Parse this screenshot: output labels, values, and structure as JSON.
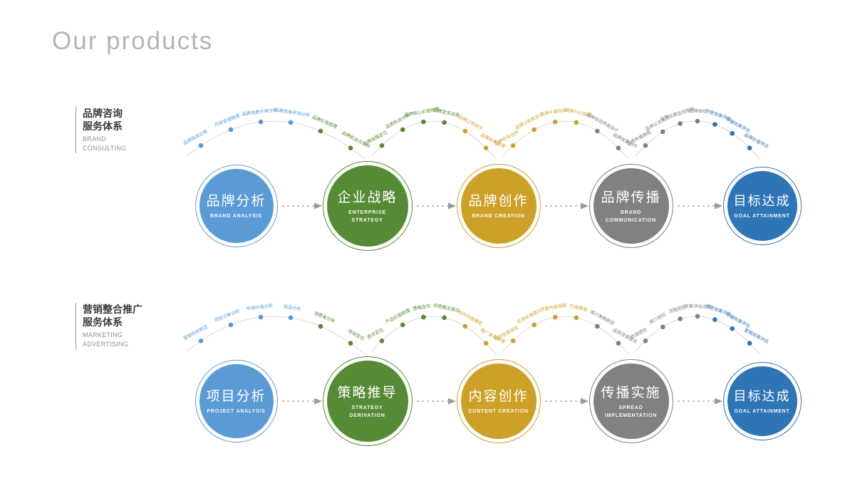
{
  "title": "Our products",
  "colors": {
    "blue": "#5b9bd5",
    "green": "#568a35",
    "gold": "#cda127",
    "gray": "#818181",
    "deepblue": "#2e75b6",
    "arrow": "#9b9b9b",
    "arc": "#cccccc"
  },
  "sections": [
    {
      "id": "brand-consulting",
      "label_cn_line1": "品牌咨询",
      "label_cn_line2": "服务体系",
      "label_en_line1": "BRAND",
      "label_en_line2": "CONSULTING",
      "nodes": [
        {
          "cn": "品牌分析",
          "en": "BRAND ANALYSIS",
          "color": "blue"
        },
        {
          "cn": "企业战略",
          "en": "ENTERPRISE STRATEGY",
          "color": "green"
        },
        {
          "cn": "品牌创作",
          "en": "BRAND CREATION",
          "color": "gold"
        },
        {
          "cn": "品牌传播",
          "en": "BRAND COMMUNICATION",
          "color": "gray"
        },
        {
          "cn": "目标达成",
          "en": "GOAL ATTAINMENT",
          "color": "deepblue"
        }
      ],
      "arcs": [
        {
          "labels": [
            "品牌现状诊断",
            "内部资源梳理",
            "品牌消费环境分析",
            "品牌竞争环境分析",
            "品牌价值梳理",
            "品牌机会点分析"
          ]
        },
        {
          "labels": [
            "品牌战略定位",
            "品类机会分析",
            "品牌核心价值梳理",
            "品牌定名创意",
            "品牌口号创作",
            "品牌故事梳理"
          ]
        },
        {
          "labels": [
            "品牌符号创作",
            "品牌VI系统设计",
            "品牌千面包装",
            "品牌TVC拍摄",
            "品牌体验终端设计",
            "品牌故事创作"
          ]
        },
        {
          "labels": [
            "品牌传播策略",
            "品牌公关策划",
            "日常运营监测策略",
            "品牌体检",
            "创意效果评估",
            "传播效果评估",
            "品牌价值传达"
          ]
        }
      ]
    },
    {
      "id": "marketing-advertising",
      "label_cn_line1": "营销整合推广",
      "label_cn_line2": "服务体系",
      "label_en_line1": "MARKETING",
      "label_en_line2": "ADVERTISING",
      "nodes": [
        {
          "cn": "项目分析",
          "en": "PROJECT ANALYSIS",
          "color": "blue"
        },
        {
          "cn": "策略推导",
          "en": "STRATEGY DERIVATION",
          "color": "green"
        },
        {
          "cn": "内容创作",
          "en": "CONTENT CREATION",
          "color": "gold"
        },
        {
          "cn": "传播实施",
          "en": "SPREAD IMPLEMENTATION",
          "color": "gray"
        },
        {
          "cn": "目标达成",
          "en": "GOAL ATTAINMENT",
          "color": "deepblue"
        }
      ],
      "arcs": [
        {
          "labels": [
            "营销目标制定",
            "项目诊断分析",
            "市场环境分析",
            "竞品分析",
            "消费者分析",
            "项目定位"
          ]
        },
        {
          "labels": [
            "卖点定位",
            "产品价值梳理",
            "策略定位",
            "创意概念提出",
            "创作风格确定",
            "推广故事梳理"
          ]
        },
        {
          "labels": [
            "规划创意研究",
            "任务标准建立",
            "月度内容规划",
            "巧用渠道",
            "媒介策略制定",
            "品质资源整合"
          ]
        },
        {
          "labels": [
            "资源把控",
            "媒介把控",
            "流程把控",
            "效果评估达成",
            "创意效果评估",
            "传播效果评估",
            "营销效果评估"
          ]
        }
      ]
    }
  ]
}
